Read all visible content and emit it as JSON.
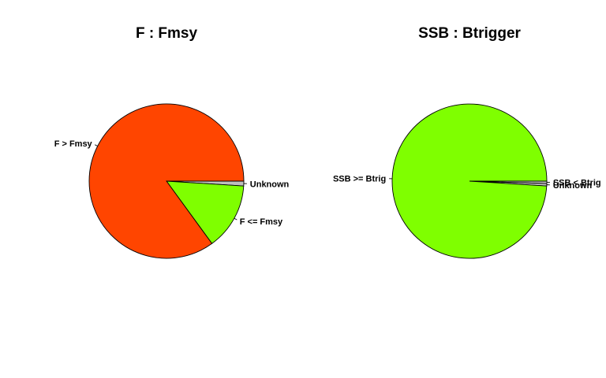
{
  "chart_data": [
    {
      "type": "pie",
      "title": "F : Fmsy",
      "slices": [
        {
          "label": "Unknown",
          "value": 1,
          "color": "#BEBEBE"
        },
        {
          "label": "F <= Fmsy",
          "value": 14,
          "color": "#7FFF00"
        },
        {
          "label": "F > Fmsy",
          "value": 85,
          "color": "#FF4500"
        }
      ],
      "start_angle_deg": 0,
      "direction": "clockwise",
      "legend": "none"
    },
    {
      "type": "pie",
      "title": "SSB : Btrigger",
      "slices": [
        {
          "label": "SSB < Btrig",
          "value": 0.5,
          "color": "#BEBEBE"
        },
        {
          "label": "Unknown",
          "value": 0.5,
          "color": "#BEBEBE"
        },
        {
          "label": "SSB >= Btrig",
          "value": 99,
          "color": "#7FFF00"
        }
      ],
      "start_angle_deg": 0,
      "direction": "clockwise",
      "legend": "none"
    }
  ]
}
